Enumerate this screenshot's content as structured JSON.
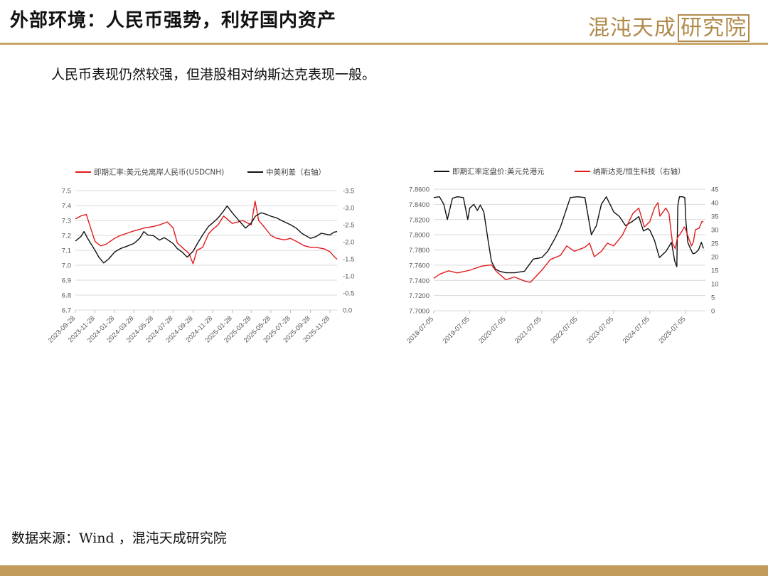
{
  "header": {
    "title": "外部环境：人民币强势，利好国内资产",
    "logo_text": "混沌天成",
    "logo_boxed": "研究院"
  },
  "subtitle": "人民币表现仍然较强，但港股相对纳斯达克表现一般。",
  "source": "数据来源：Wind ，混沌天成研究院",
  "colors": {
    "accent": "#c9a46a",
    "red": "#e31a1c",
    "black": "#111111"
  },
  "chart_data": [
    {
      "type": "line",
      "legend": [
        "即期汇率:美元兑离岸人民币(USDCNH)",
        "中美利差（右轴）"
      ],
      "x_ticks": [
        "2023-09-28",
        "2023-11-28",
        "2024-01-28",
        "2024-03-28",
        "2024-05-28",
        "2024-07-28",
        "2024-09-28",
        "2024-11-28",
        "2025-01-28",
        "2025-03-28",
        "2025-05-28",
        "2025-07-28",
        "2025-09-28",
        "2025-11-28"
      ],
      "y_left_ticks": [
        "7.5",
        "7.4",
        "7.3",
        "7.2",
        "7.1",
        "7.0",
        "6.9",
        "6.8",
        "6.7"
      ],
      "y_right_ticks": [
        "-3.5",
        "-3.0",
        "-2.5",
        "-2.0",
        "-1.5",
        "-1.0",
        "-0.5",
        "0.0"
      ],
      "y_left_range": [
        6.7,
        7.5
      ],
      "y_right_range": [
        0.0,
        -3.5
      ],
      "x_range": [
        "2023-09-28",
        "2025-12-20"
      ],
      "series": [
        {
          "name": "即期汇率:美元兑离岸人民币(USDCNH)",
          "axis": "left",
          "color": "#e31a1c",
          "points": [
            [
              "2023-09-28",
              7.31
            ],
            [
              "2023-10-15",
              7.33
            ],
            [
              "2023-11-01",
              7.34
            ],
            [
              "2023-11-10",
              7.28
            ],
            [
              "2023-11-28",
              7.16
            ],
            [
              "2023-12-15",
              7.13
            ],
            [
              "2024-01-01",
              7.14
            ],
            [
              "2024-01-28",
              7.18
            ],
            [
              "2024-02-15",
              7.2
            ],
            [
              "2024-03-01",
              7.21
            ],
            [
              "2024-03-28",
              7.23
            ],
            [
              "2024-04-15",
              7.24
            ],
            [
              "2024-05-01",
              7.25
            ],
            [
              "2024-05-28",
              7.26
            ],
            [
              "2024-06-15",
              7.27
            ],
            [
              "2024-07-10",
              7.29
            ],
            [
              "2024-07-28",
              7.25
            ],
            [
              "2024-08-10",
              7.15
            ],
            [
              "2024-08-25",
              7.12
            ],
            [
              "2024-09-15",
              7.08
            ],
            [
              "2024-09-28",
              7.01
            ],
            [
              "2024-10-10",
              7.1
            ],
            [
              "2024-10-28",
              7.12
            ],
            [
              "2024-11-15",
              7.21
            ],
            [
              "2024-11-28",
              7.24
            ],
            [
              "2024-12-15",
              7.27
            ],
            [
              "2025-01-01",
              7.33
            ],
            [
              "2025-01-28",
              7.28
            ],
            [
              "2025-02-15",
              7.29
            ],
            [
              "2025-03-01",
              7.3
            ],
            [
              "2025-03-28",
              7.27
            ],
            [
              "2025-04-09",
              7.43
            ],
            [
              "2025-04-20",
              7.3
            ],
            [
              "2025-05-10",
              7.25
            ],
            [
              "2025-05-28",
              7.2
            ],
            [
              "2025-06-15",
              7.18
            ],
            [
              "2025-07-10",
              7.17
            ],
            [
              "2025-07-28",
              7.18
            ],
            [
              "2025-08-15",
              7.16
            ],
            [
              "2025-09-10",
              7.13
            ],
            [
              "2025-09-28",
              7.12
            ],
            [
              "2025-10-15",
              7.12
            ],
            [
              "2025-11-10",
              7.11
            ],
            [
              "2025-11-28",
              7.09
            ],
            [
              "2025-12-10",
              7.06
            ],
            [
              "2025-12-20",
              7.04
            ]
          ]
        },
        {
          "name": "中美利差（右轴）",
          "axis": "right",
          "color": "#111111",
          "points": [
            [
              "2023-09-28",
              -2.02
            ],
            [
              "2023-10-15",
              -2.15
            ],
            [
              "2023-10-25",
              -2.3
            ],
            [
              "2023-11-05",
              -2.1
            ],
            [
              "2023-11-28",
              -1.75
            ],
            [
              "2023-12-10",
              -1.55
            ],
            [
              "2023-12-25",
              -1.38
            ],
            [
              "2024-01-10",
              -1.5
            ],
            [
              "2024-01-28",
              -1.7
            ],
            [
              "2024-02-15",
              -1.8
            ],
            [
              "2024-03-01",
              -1.85
            ],
            [
              "2024-03-28",
              -1.95
            ],
            [
              "2024-04-15",
              -2.1
            ],
            [
              "2024-04-28",
              -2.3
            ],
            [
              "2024-05-10",
              -2.2
            ],
            [
              "2024-05-28",
              -2.18
            ],
            [
              "2024-06-15",
              -2.05
            ],
            [
              "2024-07-01",
              -2.12
            ],
            [
              "2024-07-28",
              -1.95
            ],
            [
              "2024-08-10",
              -1.8
            ],
            [
              "2024-08-25",
              -1.7
            ],
            [
              "2024-09-10",
              -1.55
            ],
            [
              "2024-09-28",
              -1.72
            ],
            [
              "2024-10-15",
              -2.0
            ],
            [
              "2024-10-28",
              -2.2
            ],
            [
              "2024-11-15",
              -2.45
            ],
            [
              "2024-11-28",
              -2.55
            ],
            [
              "2024-12-15",
              -2.7
            ],
            [
              "2025-01-01",
              -2.9
            ],
            [
              "2025-01-12",
              -3.05
            ],
            [
              "2025-01-28",
              -2.85
            ],
            [
              "2025-02-15",
              -2.65
            ],
            [
              "2025-03-01",
              -2.5
            ],
            [
              "2025-03-10",
              -2.4
            ],
            [
              "2025-03-28",
              -2.55
            ],
            [
              "2025-04-10",
              -2.75
            ],
            [
              "2025-04-28",
              -2.85
            ],
            [
              "2025-05-15",
              -2.8
            ],
            [
              "2025-05-28",
              -2.75
            ],
            [
              "2025-06-15",
              -2.7
            ],
            [
              "2025-07-01",
              -2.62
            ],
            [
              "2025-07-28",
              -2.5
            ],
            [
              "2025-08-15",
              -2.4
            ],
            [
              "2025-09-01",
              -2.25
            ],
            [
              "2025-09-28",
              -2.1
            ],
            [
              "2025-10-15",
              -2.15
            ],
            [
              "2025-11-01",
              -2.25
            ],
            [
              "2025-11-28",
              -2.2
            ],
            [
              "2025-12-10",
              -2.28
            ],
            [
              "2025-12-20",
              -2.3
            ]
          ]
        }
      ]
    },
    {
      "type": "line",
      "legend": [
        "即期汇率定盘价:美元兑港元",
        "纳斯达克/恒生科技（右轴）"
      ],
      "x_ticks": [
        "2018-07-05",
        "2019-07-05",
        "2020-07-05",
        "2021-07-05",
        "2022-07-05",
        "2023-07-05",
        "2024-07-05",
        "2025-07-05"
      ],
      "y_left_ticks": [
        "7.8600",
        "7.8400",
        "7.8200",
        "7.8000",
        "7.7800",
        "7.7600",
        "7.7400",
        "7.7200",
        "7.7000"
      ],
      "y_right_ticks": [
        "45",
        "40",
        "35",
        "30",
        "25",
        "20",
        "15",
        "10",
        "5",
        "0"
      ],
      "y_left_range": [
        7.7,
        7.86
      ],
      "y_right_range": [
        0,
        45
      ],
      "x_range": [
        "2018-07-05",
        "2026-01-20"
      ],
      "series": [
        {
          "name": "即期汇率定盘价:美元兑港元",
          "axis": "left",
          "color": "#111111",
          "points": [
            [
              "2018-07-05",
              7.849
            ],
            [
              "2018-09-01",
              7.85
            ],
            [
              "2018-10-15",
              7.84
            ],
            [
              "2018-11-20",
              7.82
            ],
            [
              "2019-01-10",
              7.848
            ],
            [
              "2019-03-01",
              7.85
            ],
            [
              "2019-05-01",
              7.849
            ],
            [
              "2019-06-15",
              7.82
            ],
            [
              "2019-07-05",
              7.835
            ],
            [
              "2019-08-15",
              7.84
            ],
            [
              "2019-09-20",
              7.832
            ],
            [
              "2019-10-20",
              7.839
            ],
            [
              "2019-11-25",
              7.83
            ],
            [
              "2020-01-10",
              7.79
            ],
            [
              "2020-02-10",
              7.765
            ],
            [
              "2020-03-20",
              7.755
            ],
            [
              "2020-05-01",
              7.752
            ],
            [
              "2020-07-05",
              7.75
            ],
            [
              "2020-10-01",
              7.75
            ],
            [
              "2021-01-10",
              7.752
            ],
            [
              "2021-04-10",
              7.768
            ],
            [
              "2021-07-05",
              7.77
            ],
            [
              "2021-09-01",
              7.778
            ],
            [
              "2021-11-15",
              7.795
            ],
            [
              "2022-01-10",
              7.81
            ],
            [
              "2022-03-15",
              7.835
            ],
            [
              "2022-04-20",
              7.849
            ],
            [
              "2022-07-05",
              7.85
            ],
            [
              "2022-09-15",
              7.849
            ],
            [
              "2022-11-20",
              7.8
            ],
            [
              "2023-01-10",
              7.812
            ],
            [
              "2023-03-01",
              7.84
            ],
            [
              "2023-04-20",
              7.85
            ],
            [
              "2023-07-05",
              7.83
            ],
            [
              "2023-09-01",
              7.824
            ],
            [
              "2023-11-01",
              7.812
            ],
            [
              "2024-01-15",
              7.818
            ],
            [
              "2024-03-15",
              7.824
            ],
            [
              "2024-05-01",
              7.805
            ],
            [
              "2024-06-15",
              7.808
            ],
            [
              "2024-07-05",
              7.806
            ],
            [
              "2024-08-20",
              7.793
            ],
            [
              "2024-10-10",
              7.77
            ],
            [
              "2024-12-15",
              7.778
            ],
            [
              "2025-02-10",
              7.79
            ],
            [
              "2025-03-15",
              7.765
            ],
            [
              "2025-04-05",
              7.758
            ],
            [
              "2025-04-15",
              7.838
            ],
            [
              "2025-05-01",
              7.85
            ],
            [
              "2025-06-01",
              7.85
            ],
            [
              "2025-06-25",
              7.849
            ],
            [
              "2025-07-05",
              7.82
            ],
            [
              "2025-07-25",
              7.79
            ],
            [
              "2025-08-20",
              7.782
            ],
            [
              "2025-09-15",
              7.775
            ],
            [
              "2025-10-10",
              7.776
            ],
            [
              "2025-11-10",
              7.78
            ],
            [
              "2025-12-10",
              7.79
            ],
            [
              "2025-12-31",
              7.782
            ]
          ]
        },
        {
          "name": "纳斯达克/恒生科技（右轴）",
          "axis": "right",
          "color": "#e31a1c",
          "points": [
            [
              "2018-07-05",
              12.0
            ],
            [
              "2018-09-01",
              13.5
            ],
            [
              "2018-12-01",
              14.8
            ],
            [
              "2019-03-01",
              14.0
            ],
            [
              "2019-07-05",
              15.0
            ],
            [
              "2019-11-01",
              16.5
            ],
            [
              "2020-02-10",
              17.0
            ],
            [
              "2020-04-01",
              14.5
            ],
            [
              "2020-07-05",
              11.5
            ],
            [
              "2020-10-01",
              12.5
            ],
            [
              "2021-01-10",
              11.0
            ],
            [
              "2021-03-10",
              10.5
            ],
            [
              "2021-07-05",
              15.0
            ],
            [
              "2021-10-01",
              19.0
            ],
            [
              "2022-01-10",
              20.5
            ],
            [
              "2022-03-15",
              24.0
            ],
            [
              "2022-06-01",
              22.0
            ],
            [
              "2022-09-15",
              23.5
            ],
            [
              "2022-11-01",
              25.0
            ],
            [
              "2022-12-20",
              20.0
            ],
            [
              "2023-03-01",
              22.0
            ],
            [
              "2023-05-01",
              25.0
            ],
            [
              "2023-07-05",
              24.0
            ],
            [
              "2023-10-01",
              28.0
            ],
            [
              "2024-01-15",
              36.0
            ],
            [
              "2024-03-15",
              38.0
            ],
            [
              "2024-05-10",
              31.0
            ],
            [
              "2024-07-05",
              33.0
            ],
            [
              "2024-08-20",
              38.0
            ],
            [
              "2024-09-25",
              40.0
            ],
            [
              "2024-10-15",
              35.0
            ],
            [
              "2024-12-15",
              38.0
            ],
            [
              "2025-01-15",
              36.0
            ],
            [
              "2025-02-20",
              25.0
            ],
            [
              "2025-03-20",
              23.0
            ],
            [
              "2025-04-10",
              27.0
            ],
            [
              "2025-05-20",
              29.0
            ],
            [
              "2025-06-20",
              31.0
            ],
            [
              "2025-07-05",
              30.0
            ],
            [
              "2025-08-01",
              27.0
            ],
            [
              "2025-09-01",
              24.0
            ],
            [
              "2025-09-20",
              25.5
            ],
            [
              "2025-10-10",
              30.0
            ],
            [
              "2025-11-15",
              30.5
            ],
            [
              "2025-12-15",
              33.0
            ],
            [
              "2025-12-31",
              33.0
            ]
          ]
        }
      ]
    }
  ]
}
